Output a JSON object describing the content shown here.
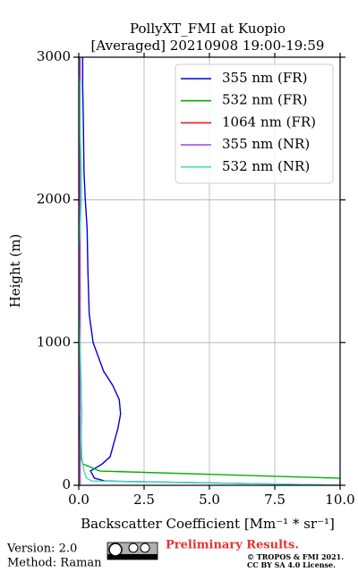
{
  "chart_data": {
    "type": "line",
    "title": "PollyXT_FMI at Kuopio",
    "subtitle": "[Averaged] 20210908 19:00-19:59",
    "x_label": "Backscatter Coefficient [Mm⁻¹ * sr⁻¹]",
    "y_label": "Height (m)",
    "y": [
      0,
      30,
      50,
      100,
      150,
      200,
      300,
      400,
      500,
      600,
      700,
      800,
      1000,
      1200,
      1500,
      1800,
      2000,
      2200,
      2500,
      2800,
      3000
    ],
    "series": [
      {
        "name": "355 nm (FR)",
        "color": "#0000dd",
        "values": [
          10,
          1.0,
          0.6,
          0.45,
          0.9,
          1.2,
          1.35,
          1.5,
          1.6,
          1.55,
          1.3,
          0.95,
          0.55,
          0.4,
          0.35,
          0.32,
          0.25,
          0.2,
          0.18,
          0.15,
          0.15
        ]
      },
      {
        "name": "532 nm (FR)",
        "color": "#00b000",
        "values": [
          10,
          10,
          10,
          0.8,
          0.15,
          0.08,
          0.05,
          0.03,
          0.0,
          -0.05,
          -0.08,
          -0.1,
          -0.12,
          -0.1,
          -0.05,
          -0.03,
          0.0,
          0.0,
          0.0,
          0.0,
          0.0
        ]
      },
      {
        "name": "1064 nm (FR)",
        "color": "#dd2020",
        "values": [
          0.05,
          0.05,
          0.05,
          0.05,
          0.05,
          0.05,
          0.05,
          0.05,
          0.05,
          0.05,
          0.05,
          0.05,
          0.05,
          0.05,
          0.05,
          0.05,
          0.05,
          0.05,
          0.05,
          0.05,
          0.05
        ]
      },
      {
        "name": "355 nm (NR)",
        "color": "#a050d8",
        "values": [
          0.05,
          0.05,
          0.05,
          0.05,
          0.05,
          0.05,
          0.05,
          0.05,
          0.05,
          0.05,
          0.05,
          0.05,
          0.05,
          0.05,
          0.05,
          0.05,
          0.05,
          0.05,
          0.05,
          0.05,
          0.05
        ]
      },
      {
        "name": "532 nm (NR)",
        "color": "#40e0c0",
        "values": [
          10,
          0.5,
          0.3,
          0.2,
          0.15,
          0.12,
          0.1,
          0.1,
          0.12,
          0.1,
          0.1,
          0.08,
          0.05,
          0.0,
          -0.05,
          0.05,
          0.1,
          0.1,
          0.05,
          0.05,
          -0.1
        ]
      }
    ],
    "xlim": [
      0,
      10
    ],
    "xticks": [
      {
        "value": 0,
        "label": "0.0"
      },
      2.5,
      {
        "value": 5,
        "label": "5.0"
      },
      7.5,
      {
        "value": 10,
        "label": "10.0"
      }
    ],
    "ylim": [
      0,
      3000
    ],
    "yticks": [
      0,
      1000,
      2000,
      3000
    ],
    "grid": true,
    "legend": "upper right"
  },
  "footer": {
    "version": "Version: 2.0",
    "method": "Method: Raman",
    "notice": "Preliminary Results.",
    "copyright": "© TROPOS & FMI 2021.",
    "license": "CC BY SA 4.0 License."
  }
}
